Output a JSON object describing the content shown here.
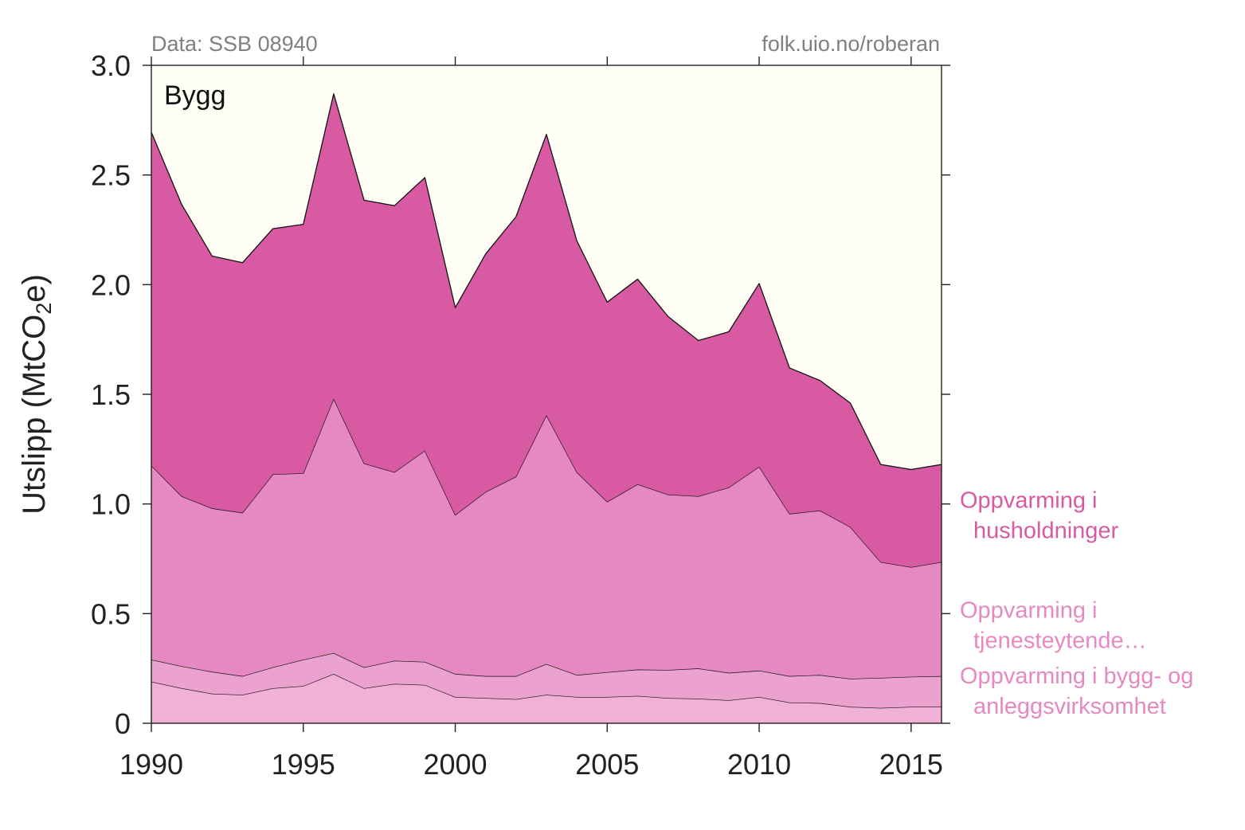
{
  "source_note": "Data: SSB 08940",
  "credit": "folk.uio.no/roberan",
  "chart_data": {
    "type": "area",
    "stacked": true,
    "title": "Bygg",
    "ylabel": {
      "prefix": "Utslipp (MtCO",
      "subscript": "2",
      "suffix": "e)"
    },
    "xlim": [
      1990,
      2016
    ],
    "ylim": [
      0,
      3
    ],
    "xticks": [
      "1990",
      "1995",
      "2000",
      "2005",
      "2010",
      "2015"
    ],
    "xtick_values": [
      1990,
      1995,
      2000,
      2005,
      2010,
      2015
    ],
    "yticks": [
      "0",
      "0.5",
      "1.0",
      "1.5",
      "2.0",
      "2.5",
      "3.0"
    ],
    "ytick_values": [
      0,
      0.5,
      1.0,
      1.5,
      2.0,
      2.5,
      3.0
    ],
    "grid": false,
    "background": "#fffff5",
    "x": [
      1990,
      1991,
      1992,
      1993,
      1994,
      1995,
      1996,
      1997,
      1998,
      1999,
      2000,
      2001,
      2002,
      2003,
      2004,
      2005,
      2006,
      2007,
      2008,
      2009,
      2010,
      2011,
      2012,
      2013,
      2014,
      2015,
      2016
    ],
    "series": [
      {
        "name": "",
        "color": "#f0b0d8",
        "values": [
          0.19,
          0.16,
          0.135,
          0.13,
          0.16,
          0.17,
          0.225,
          0.16,
          0.18,
          0.175,
          0.12,
          0.115,
          0.11,
          0.13,
          0.12,
          0.12,
          0.125,
          0.115,
          0.112,
          0.105,
          0.12,
          0.095,
          0.092,
          0.075,
          0.07,
          0.075,
          0.075
        ]
      },
      {
        "name": "",
        "color": "#eca2cf",
        "values": [
          0.1,
          0.1,
          0.1,
          0.085,
          0.095,
          0.12,
          0.095,
          0.095,
          0.105,
          0.105,
          0.105,
          0.1,
          0.105,
          0.14,
          0.1,
          0.113,
          0.12,
          0.128,
          0.138,
          0.125,
          0.12,
          0.12,
          0.128,
          0.128,
          0.137,
          0.137,
          0.14
        ]
      },
      {
        "name": "Oppvarming i tjenesteytende…",
        "label_lines": [
          "Oppvarming i",
          "tjenesteytende…"
        ],
        "color": "#e689c2",
        "values": [
          0.885,
          0.775,
          0.745,
          0.745,
          0.88,
          0.85,
          1.16,
          0.93,
          0.86,
          0.963,
          0.725,
          0.84,
          0.91,
          1.135,
          0.925,
          0.777,
          0.845,
          0.8,
          0.785,
          0.845,
          0.93,
          0.74,
          0.75,
          0.692,
          0.528,
          0.5,
          0.52
        ]
      },
      {
        "name": "Oppvarming i husholdninger",
        "label_lines": [
          "Oppvarming i",
          "husholdninger"
        ],
        "color": "#d75aa2",
        "values": [
          1.52,
          1.33,
          1.15,
          1.14,
          1.12,
          1.135,
          1.39,
          1.2,
          1.215,
          1.245,
          0.945,
          1.085,
          1.185,
          1.28,
          1.055,
          0.91,
          0.935,
          0.812,
          0.71,
          0.71,
          0.835,
          0.665,
          0.593,
          0.565,
          0.445,
          0.445,
          0.445
        ]
      }
    ],
    "legend_entries": [
      {
        "lines": [
          "Oppvarming i",
          "husholdninger"
        ],
        "color": "#d75aa2",
        "value": 1.0
      },
      {
        "lines": [
          "Oppvarming i",
          "tjenesteytende…"
        ],
        "color": "#e689c2",
        "value": 0.5
      },
      {
        "lines": [
          "Oppvarming i bygg- og",
          "anleggsvirksomhet"
        ],
        "color": "#e689c2",
        "value": 0.2
      }
    ]
  }
}
